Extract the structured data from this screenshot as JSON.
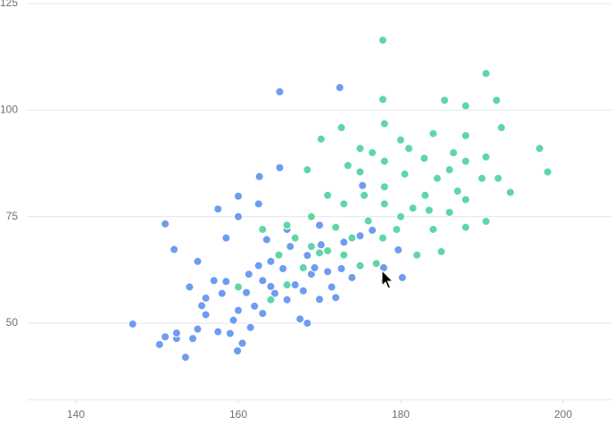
{
  "chart_data": {
    "type": "scatter",
    "xlim": [
      134,
      206
    ],
    "xticks": [
      140,
      160,
      180,
      200
    ],
    "ylim": [
      32,
      125
    ],
    "yticks": [
      50,
      75,
      100,
      125
    ],
    "grid": true,
    "series": [
      {
        "color": "#6d9cf0",
        "x": [
          147.0,
          150.3,
          151.0,
          152.4,
          152.4,
          153.5,
          154.4,
          155.0,
          155.5,
          156.0,
          157.0,
          157.5,
          158.0,
          158.5,
          159.0,
          159.4,
          159.9,
          160.0,
          160.0,
          160.5,
          161.0,
          161.3,
          162.0,
          162.5,
          162.6,
          163.0,
          163.5,
          164.0,
          164.5,
          165.1,
          165.1,
          165.5,
          166.0,
          166.4,
          167.0,
          167.6,
          168.0,
          168.5,
          169.0,
          169.4,
          170.0,
          170.2,
          171.0,
          171.5,
          172.0,
          172.5,
          172.7,
          173.0,
          174.0,
          175.0,
          175.3,
          151.0,
          157.5,
          152.1,
          155.0,
          179.7,
          180.2,
          177.9,
          176.5,
          160.0,
          162.5,
          158.5,
          156.0,
          164.0,
          166.0,
          168.5,
          170.0,
          154.0,
          161.5,
          163.0
        ],
        "values": [
          49.8,
          45.0,
          46.8,
          46.4,
          47.7,
          42.0,
          46.4,
          48.6,
          54.1,
          55.9,
          60.0,
          48.0,
          57.0,
          59.8,
          47.6,
          50.7,
          43.5,
          53.0,
          75.0,
          45.3,
          57.2,
          61.5,
          54.0,
          63.5,
          84.4,
          52.3,
          69.6,
          58.6,
          57.0,
          86.5,
          104.3,
          62.8,
          55.5,
          68.0,
          59.0,
          51.0,
          57.6,
          65.9,
          61.5,
          63.0,
          55.6,
          68.4,
          62.1,
          58.5,
          56.0,
          105.3,
          62.8,
          69.0,
          60.7,
          70.5,
          82.3,
          73.3,
          76.8,
          67.3,
          64.5,
          67.2,
          60.7,
          63.0,
          71.8,
          79.8,
          78.0,
          70.0,
          52.0,
          64.5,
          72.0,
          50.0,
          73.0,
          58.5,
          49.0,
          60.0
        ]
      },
      {
        "color": "#5fd6a6",
        "x": [
          177.8,
          190.5,
          188.0,
          185.4,
          191.8,
          177.8,
          172.7,
          170.2,
          175.0,
          178.0,
          180.0,
          184.0,
          188.0,
          192.4,
          197.1,
          198.1,
          193.5,
          190.5,
          188.0,
          186.0,
          185.0,
          182.0,
          178.0,
          177.0,
          175.0,
          173.0,
          170.0,
          168.0,
          166.0,
          164.0,
          165.0,
          167.0,
          169.0,
          171.0,
          173.0,
          175.0,
          176.0,
          177.8,
          178.0,
          178.0,
          178.0,
          180.0,
          180.5,
          181.5,
          182.9,
          183.0,
          184.0,
          184.5,
          186.0,
          187.0,
          188.0,
          188.0,
          190.0,
          190.5,
          192.0,
          174.0,
          172.0,
          171.0,
          169.0,
          166.0,
          168.5,
          181.0,
          176.5,
          179.5,
          183.5,
          160.0,
          163.0,
          175.5,
          186.5,
          173.5
        ],
        "values": [
          116.4,
          108.6,
          101.0,
          102.3,
          102.3,
          102.5,
          95.9,
          93.2,
          91.0,
          96.8,
          93.0,
          94.5,
          94.0,
          95.9,
          91.0,
          85.5,
          80.7,
          73.9,
          72.5,
          76.0,
          66.8,
          66.0,
          60.0,
          64.0,
          63.5,
          66.0,
          66.5,
          63.0,
          59.0,
          55.5,
          66.0,
          70.0,
          75.0,
          80.0,
          78.0,
          85.5,
          74.0,
          70.0,
          78.0,
          82.0,
          88.0,
          75.0,
          85.0,
          77.0,
          88.7,
          80.0,
          72.0,
          84.0,
          86.0,
          81.0,
          88.0,
          79.0,
          84.0,
          89.0,
          84.0,
          70.0,
          72.5,
          67.0,
          68.0,
          73.0,
          86.0,
          91.0,
          90.0,
          72.0,
          76.5,
          58.5,
          72.0,
          80.0,
          90.0,
          87.0
        ]
      }
    ]
  }
}
